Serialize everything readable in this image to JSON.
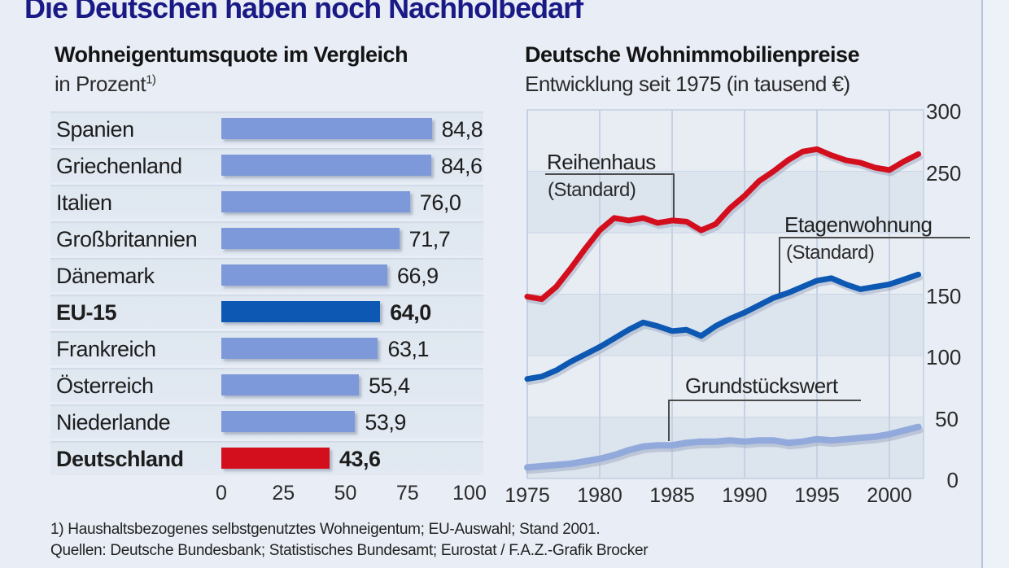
{
  "page": {
    "title": "Die Deutschen haben noch Nachholbedarf"
  },
  "colors": {
    "page_bg": "#e9eef6",
    "title_navy": "#1a1a86",
    "bar_blue": "#7e99d9",
    "accent_blue": "#0c58b2",
    "accent_red": "#d30f1e",
    "light_blue_line": "#92a9dc",
    "row_band": "#dfe7f0",
    "plot_band_dark": "#dce4ee",
    "plot_band_light": "#e8edf4",
    "gridline": "#c6d2e3"
  },
  "footnotes": [
    "1) Haushaltsbezogenes selbstgenutztes Wohneigentum; EU-Auswahl; Stand 2001.",
    "Quellen: Deutsche Bundesbank; Statistisches Bundesamt; Eurostat / F.A.Z.-Grafik Brocker"
  ],
  "chart_data": [
    {
      "type": "bar",
      "orientation": "horizontal",
      "title": "Wohneigentumsquote im Vergleich",
      "subtitle": "in Prozent",
      "footnote_marker": "1)",
      "xlim": [
        0,
        100
      ],
      "x_ticks": [
        0,
        25,
        50,
        75,
        100
      ],
      "categories": [
        "Spanien",
        "Griechenland",
        "Italien",
        "Großbritannien",
        "Dänemark",
        "EU-15",
        "Frankreich",
        "Österreich",
        "Niederlande",
        "Deutschland"
      ],
      "values": [
        84.8,
        84.6,
        76.0,
        71.7,
        66.9,
        64.0,
        63.1,
        55.4,
        53.9,
        43.6
      ],
      "value_labels": [
        "84,8",
        "84,6",
        "76,0",
        "71,7",
        "66,9",
        "64,0",
        "63,1",
        "55,4",
        "53,9",
        "43,6"
      ],
      "emphasis": [
        false,
        false,
        false,
        false,
        false,
        true,
        false,
        false,
        false,
        true
      ],
      "bar_colors": [
        "#7e99d9",
        "#7e99d9",
        "#7e99d9",
        "#7e99d9",
        "#7e99d9",
        "#0c58b2",
        "#7e99d9",
        "#7e99d9",
        "#7e99d9",
        "#d30f1e"
      ]
    },
    {
      "type": "line",
      "title": "Deutsche Wohnimmobilienpreise",
      "subtitle": "Entwicklung seit 1975 (in tausend €)",
      "ylim": [
        0,
        300
      ],
      "grid_step": 50,
      "y_ticks_visible": [
        300,
        250,
        150,
        100,
        50,
        0
      ],
      "x_ticks": [
        1975,
        1980,
        1985,
        1990,
        1995,
        2000
      ],
      "x": [
        1975,
        1976,
        1977,
        1978,
        1979,
        1980,
        1981,
        1982,
        1983,
        1984,
        1985,
        1986,
        1987,
        1988,
        1989,
        1990,
        1991,
        1992,
        1993,
        1994,
        1995,
        1996,
        1997,
        1998,
        1999,
        2000,
        2001,
        2002
      ],
      "legend_position": "annotations on chart",
      "series": [
        {
          "name": "Reihenhaus",
          "qualifier": "(Standard)",
          "color": "#d30f1e",
          "values": [
            148,
            146,
            156,
            171,
            187,
            202,
            212,
            210,
            212,
            208,
            210,
            209,
            202,
            207,
            220,
            230,
            242,
            250,
            259,
            266,
            268,
            263,
            259,
            257,
            253,
            251,
            258,
            264
          ]
        },
        {
          "name": "Etagenwohnung",
          "qualifier": "(Standard)",
          "color": "#0c58b2",
          "values": [
            81,
            83,
            88,
            95,
            101,
            107,
            114,
            121,
            127,
            124,
            120,
            121,
            116,
            124,
            130,
            135,
            141,
            147,
            151,
            156,
            161,
            163,
            158,
            154,
            156,
            158,
            162,
            166
          ]
        },
        {
          "name": "Grundstückswert",
          "qualifier": "",
          "color": "#92a9dc",
          "values": [
            9,
            10,
            11,
            12,
            14,
            16,
            19,
            23,
            26,
            27,
            27,
            29,
            30,
            30,
            31,
            30,
            31,
            31,
            29,
            30,
            32,
            31,
            32,
            33,
            34,
            36,
            39,
            42
          ]
        }
      ]
    }
  ]
}
